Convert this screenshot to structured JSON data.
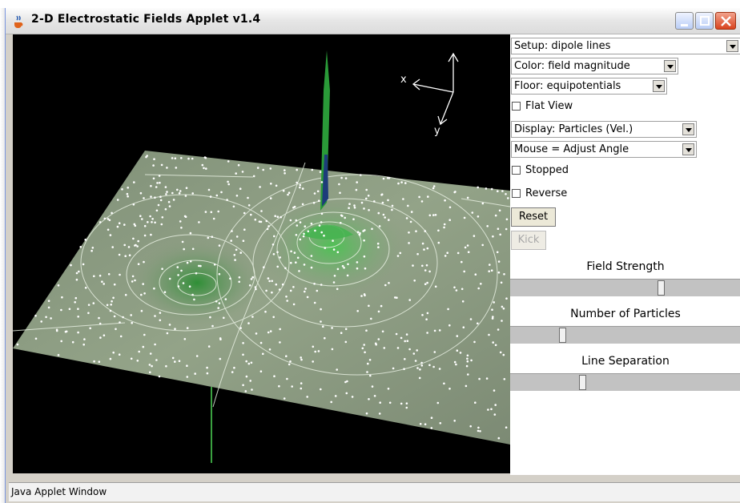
{
  "window": {
    "title": "2-D Electrostatic Fields Applet v1.4",
    "icon": "java-cup-icon"
  },
  "canvas": {
    "axis_x_label": "x",
    "axis_y_label": "y"
  },
  "controls": {
    "setup_select": "Setup: dipole lines",
    "color_select": "Color: field magnitude",
    "floor_select": "Floor: equipotentials",
    "flat_view": {
      "label": "Flat View",
      "checked": false
    },
    "display_select": "Display: Particles (Vel.)",
    "mouse_select": "Mouse = Adjust Angle",
    "stopped": {
      "label": "Stopped",
      "checked": false
    },
    "reverse": {
      "label": "Reverse",
      "checked": false
    },
    "reset_label": "Reset",
    "kick_label": "Kick",
    "field_strength": {
      "label": "Field Strength",
      "value": 0.66
    },
    "num_particles": {
      "label": "Number of Particles",
      "value": 0.22
    },
    "line_separation": {
      "label": "Line Separation",
      "value": 0.31
    }
  },
  "statusbar": {
    "text": "Java Applet Window"
  },
  "colors": {
    "surface": "#8a9a80",
    "peak": "#2fae3a",
    "canvas_bg": "#000000",
    "close_button": "#d9441f"
  }
}
